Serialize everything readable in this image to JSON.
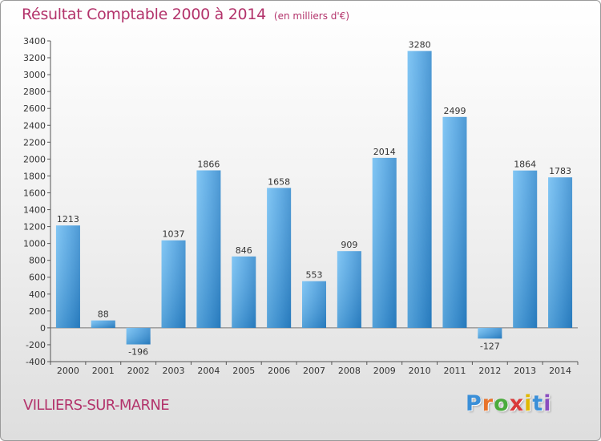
{
  "title": "Résultat Comptable 2000 à 2014",
  "subtitle": "(en milliers d'€)",
  "location": "VILLIERS-SUR-MARNE",
  "logo": {
    "letters": [
      "P",
      "r",
      "o",
      "x",
      "i",
      "t",
      "i"
    ],
    "colors": [
      "#3a8fd8",
      "#e8732a",
      "#4aab3c",
      "#d93a3a",
      "#e0b800",
      "#3a8fd8",
      "#8a4dbf"
    ]
  },
  "colors": {
    "title": "#b3336b",
    "bar_light": "#5fb1ea",
    "bar_dark": "#2274b4"
  },
  "chart_data": {
    "type": "bar",
    "title": "Résultat Comptable 2000 à 2014",
    "subtitle": "(en milliers d'€)",
    "xlabel": "",
    "ylabel": "",
    "categories": [
      "2000",
      "2001",
      "2002",
      "2003",
      "2004",
      "2005",
      "2006",
      "2007",
      "2008",
      "2009",
      "2010",
      "2011",
      "2012",
      "2013",
      "2014"
    ],
    "values": [
      1213,
      88,
      -196,
      1037,
      1866,
      846,
      1658,
      553,
      909,
      2014,
      3280,
      2499,
      -127,
      1864,
      1783
    ],
    "value_labels": [
      "1213",
      "88",
      "-196",
      "1037",
      "1866",
      "846",
      "1658",
      "553",
      "909",
      "2014",
      "3280",
      "2499",
      "-127",
      "1864",
      "1783"
    ],
    "ylim": [
      -400,
      3400
    ],
    "yticks": [
      -400,
      -200,
      0,
      200,
      400,
      600,
      800,
      1000,
      1200,
      1400,
      1600,
      1800,
      2000,
      2200,
      2400,
      2600,
      2800,
      3000,
      3200,
      3400
    ],
    "grid": false,
    "legend": "none"
  }
}
